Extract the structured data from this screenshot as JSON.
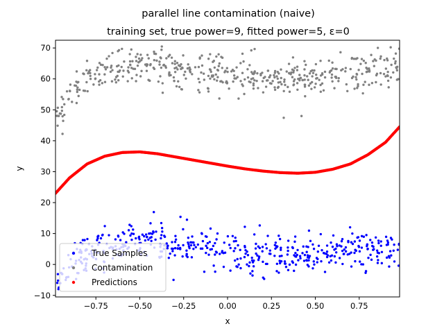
{
  "chart_data": {
    "type": "scatter",
    "title": "parallel line contamination (naive)",
    "subtitle": "training set, true power=9, fitted power=5, ε=0",
    "xlabel": "x",
    "ylabel": "y",
    "xlim": [
      -0.98,
      0.98
    ],
    "ylim": [
      -10.5,
      72.5
    ],
    "x_ticks": [
      -0.75,
      -0.5,
      -0.25,
      0.0,
      0.25,
      0.5,
      0.75
    ],
    "x_tick_labels": [
      "−0.75",
      "−0.50",
      "−0.25",
      "0.00",
      "0.25",
      "0.50",
      "0.75"
    ],
    "y_ticks": [
      -10,
      0,
      10,
      20,
      30,
      40,
      50,
      60,
      70
    ],
    "y_tick_labels": [
      "−10",
      "0",
      "10",
      "20",
      "30",
      "40",
      "50",
      "60",
      "70"
    ],
    "grid": false,
    "legend_position": "lower-left",
    "n_points_per_series": 500,
    "series": [
      {
        "name": "True Samples",
        "color": "#0000ff",
        "trend": {
          "x": [
            -0.98,
            -0.9,
            -0.8,
            -0.7,
            -0.6,
            -0.5,
            -0.4,
            -0.3,
            -0.2,
            -0.1,
            0.0,
            0.1,
            0.2,
            0.3,
            0.4,
            0.5,
            0.6,
            0.7,
            0.8,
            0.9,
            0.98
          ],
          "y": [
            -7.0,
            -2.0,
            3.0,
            6.5,
            8.0,
            8.0,
            7.5,
            6.5,
            6.0,
            5.5,
            4.5,
            3.5,
            3.0,
            3.0,
            3.0,
            3.5,
            4.0,
            4.5,
            5.0,
            5.5,
            6.0
          ]
        },
        "spread": 3.0
      },
      {
        "name": "Contamination",
        "color": "#808080",
        "trend": {
          "x": [
            -0.98,
            -0.9,
            -0.8,
            -0.7,
            -0.6,
            -0.5,
            -0.4,
            -0.3,
            -0.2,
            -0.1,
            0.0,
            0.1,
            0.2,
            0.3,
            0.4,
            0.5,
            0.6,
            0.7,
            0.8,
            0.9,
            0.98
          ],
          "y": [
            46.0,
            55.0,
            60.0,
            63.0,
            64.5,
            65.0,
            65.0,
            64.0,
            63.0,
            62.0,
            61.5,
            61.0,
            60.5,
            60.0,
            60.0,
            60.5,
            61.0,
            62.0,
            62.5,
            63.0,
            63.5
          ]
        },
        "spread": 3.0
      },
      {
        "name": "Predictions",
        "color": "#ff0000",
        "trend": {
          "x": [
            -0.98,
            -0.9,
            -0.8,
            -0.7,
            -0.6,
            -0.5,
            -0.4,
            -0.3,
            -0.2,
            -0.1,
            0.0,
            0.1,
            0.2,
            0.3,
            0.4,
            0.5,
            0.6,
            0.7,
            0.8,
            0.9,
            0.98
          ],
          "y": [
            23.0,
            28.0,
            32.5,
            35.0,
            36.2,
            36.4,
            35.8,
            34.8,
            33.8,
            32.8,
            31.8,
            30.9,
            30.2,
            29.7,
            29.5,
            29.8,
            30.8,
            32.5,
            35.5,
            39.5,
            44.5
          ]
        },
        "spread": 0.0
      }
    ]
  }
}
